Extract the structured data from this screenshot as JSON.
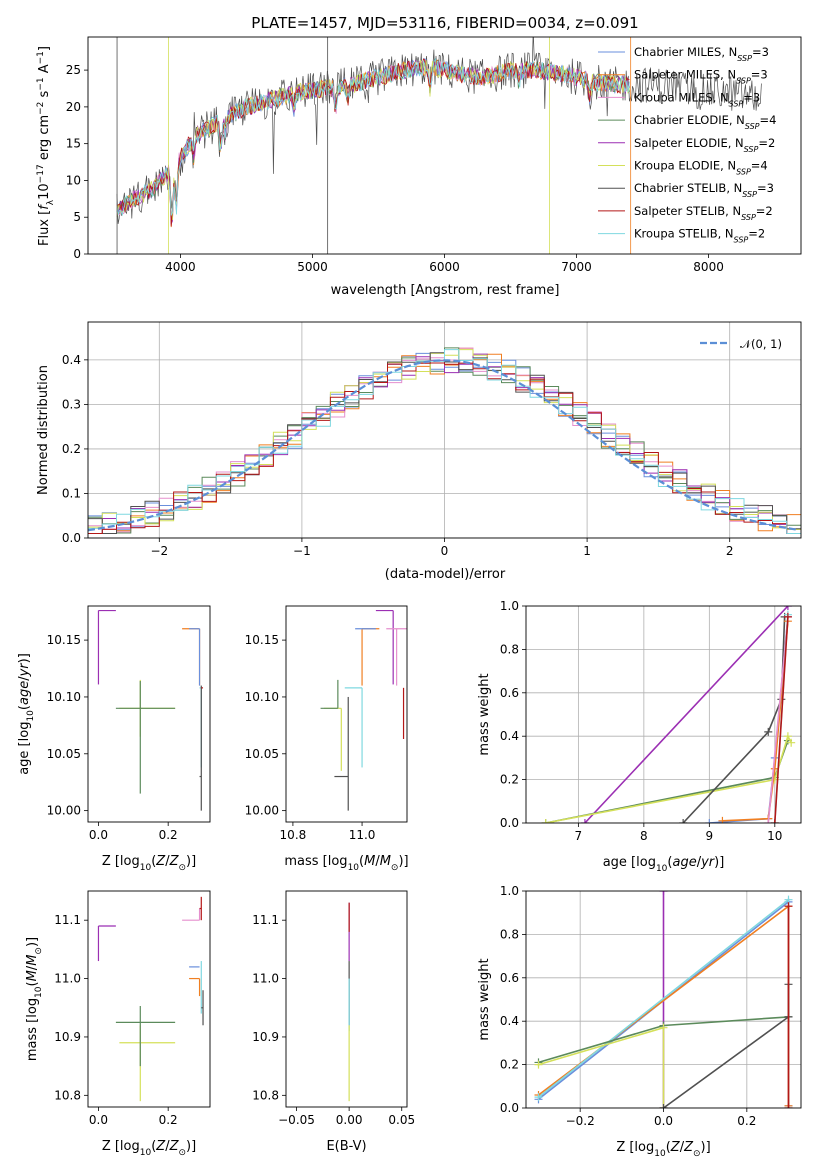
{
  "figure": {
    "title": "PLATE=1457, MJD=53116, FIBERID=0034, z=0.091"
  },
  "series_styles": [
    {
      "name": "Chabrier MILES, N_SSP=3",
      "color": "#6a8fdc"
    },
    {
      "name": "Salpeter MILES, N_SSP=3",
      "color": "#f07f22"
    },
    {
      "name": "Kroupa MILES, N_SSP=3",
      "color": "#e58fce"
    },
    {
      "name": "Chabrier ELODIE, N_SSP=4",
      "color": "#5b8a5b"
    },
    {
      "name": "Salpeter ELODIE, N_SSP=2",
      "color": "#9b2fb3"
    },
    {
      "name": "Kroupa ELODIE, N_SSP=4",
      "color": "#d4e05a"
    },
    {
      "name": "Chabrier STELIB, N_SSP=3",
      "color": "#505050"
    },
    {
      "name": "Salpeter STELIB, N_SSP=2",
      "color": "#b31717"
    },
    {
      "name": "Kroupa STELIB, N_SSP=2",
      "color": "#7fd8e0"
    }
  ],
  "chart_data": [
    {
      "id": "spectrum",
      "type": "line",
      "xlabel": "wavelength [Angstrom, rest frame]",
      "ylabel": "Flux [f_λ 10^-17 erg cm^-2 s^-1 A^-1]",
      "xlim": [
        3300,
        8700
      ],
      "ylim": [
        0,
        29.5
      ],
      "xticks": [
        4000,
        5000,
        6000,
        7000,
        8000
      ],
      "yticks": [
        0,
        5,
        10,
        15,
        20,
        25
      ],
      "grid": false,
      "legend_position": "right",
      "legend": [
        {
          "main": "Chabrier MILES, N",
          "sub": "SSP",
          "tail": "=3"
        },
        {
          "main": "Salpeter MILES, N",
          "sub": "SSP",
          "tail": "=3"
        },
        {
          "main": "Kroupa MILES, N",
          "sub": "SSP",
          "tail": "=3"
        },
        {
          "main": "Chabrier ELODIE, N",
          "sub": "SSP",
          "tail": "=4"
        },
        {
          "main": "Salpeter ELODIE, N",
          "sub": "SSP",
          "tail": "=2"
        },
        {
          "main": "Kroupa ELODIE, N",
          "sub": "SSP",
          "tail": "=4"
        },
        {
          "main": "Chabrier STELIB, N",
          "sub": "SSP",
          "tail": "=3"
        },
        {
          "main": "Salpeter STELIB, N",
          "sub": "SSP",
          "tail": "=2"
        },
        {
          "main": "Kroupa STELIB, N",
          "sub": "SSP",
          "tail": "=2"
        }
      ],
      "continuum": {
        "x": [
          3520,
          3600,
          3700,
          3800,
          3900,
          4000,
          4100,
          4200,
          4300,
          4400,
          4500,
          4700,
          4900,
          5100,
          5300,
          5500,
          5700,
          5900,
          6100,
          6300,
          6500,
          6700,
          6900,
          7100,
          7300,
          7500,
          7700,
          7900,
          8100,
          8300,
          8400
        ],
        "y": [
          6,
          7,
          8,
          9,
          11,
          13,
          16,
          17,
          18,
          19,
          20,
          21,
          22,
          22.5,
          23,
          24,
          25,
          25.5,
          24.5,
          24,
          25,
          25,
          24.5,
          23.5,
          23,
          23,
          23,
          22,
          22,
          21.5,
          21
        ]
      }
    },
    {
      "id": "residual-histogram",
      "type": "histogram",
      "xlabel": "(data-model)/error",
      "ylabel": "Normed distribution",
      "xlim": [
        -2.5,
        2.5
      ],
      "ylim": [
        0,
        0.485
      ],
      "xticks": [
        -2,
        -1,
        0,
        1,
        2
      ],
      "yticks": [
        0.0,
        0.1,
        0.2,
        0.3,
        0.4
      ],
      "grid": true,
      "bin_width": 0.1,
      "legend_position": "top-right",
      "normal_label": "𝒩(0, 1)",
      "normal_color": "#5b8fd6"
    },
    {
      "id": "age-vs-Z",
      "type": "errorbar",
      "xlabel": "Z [log10(Z/Z⊙)]",
      "ylabel": "age [log10(age/yr)]",
      "xlim": [
        -0.03,
        0.32
      ],
      "ylim": [
        9.99,
        10.18
      ],
      "xticks": [
        0.0,
        0.2
      ],
      "yticks": [
        10.0,
        10.05,
        10.1,
        10.15
      ],
      "points": [
        {
          "x": 0.0,
          "y": 10.176,
          "xerr": [
            0.0,
            0.05
          ],
          "yerr": [
            0.065,
            0.0
          ],
          "color": "#9b2fb3"
        },
        {
          "x": 0.12,
          "y": 10.09,
          "xerr": [
            0.06,
            0.1
          ],
          "yerr": [
            0.025,
            0.025
          ],
          "color": "#d4e05a"
        },
        {
          "x": 0.12,
          "y": 10.09,
          "xerr": [
            0.07,
            0.1
          ],
          "yerr": [
            0.075,
            0.024
          ],
          "color": "#5b8a5b"
        },
        {
          "x": 0.29,
          "y": 10.16,
          "xerr": [
            0.05,
            0.0
          ],
          "yerr": [
            0.05,
            0.0
          ],
          "color": "#f07f22"
        },
        {
          "x": 0.29,
          "y": 10.16,
          "xerr": [
            0.03,
            0.0
          ],
          "yerr": [
            0.05,
            0.0
          ],
          "color": "#6a8fdc"
        },
        {
          "x": 0.295,
          "y": 10.108,
          "xerr": [
            0.005,
            0.0
          ],
          "yerr": [
            0.07,
            0.0
          ],
          "color": "#7fd8e0"
        },
        {
          "x": 0.295,
          "y": 10.03,
          "xerr": [
            0.005,
            0.0
          ],
          "yerr": [
            0.03,
            0.08
          ],
          "color": "#505050"
        },
        {
          "x": 0.3,
          "y": 10.108,
          "xerr": [
            0.005,
            0.0
          ],
          "yerr": [
            0.0,
            0.0
          ],
          "color": "#b31717"
        }
      ]
    },
    {
      "id": "age-vs-mass",
      "type": "errorbar",
      "xlabel": "mass [log10(M/M⊙)]",
      "ylabel": "",
      "xlim": [
        10.78,
        11.13
      ],
      "ylim": [
        9.99,
        10.18
      ],
      "xticks": [
        10.8,
        11.0
      ],
      "yticks": [
        10.0,
        10.05,
        10.1,
        10.15
      ],
      "points": [
        {
          "x": 11.09,
          "y": 10.176,
          "xerr": [
            0.05,
            0.0
          ],
          "yerr": [
            0.065,
            0.0
          ],
          "color": "#9b2fb3"
        },
        {
          "x": 11.1,
          "y": 10.16,
          "xerr": [
            0.03,
            0.03
          ],
          "yerr": [
            0.05,
            0.0
          ],
          "color": "#e58fce"
        },
        {
          "x": 11.0,
          "y": 10.16,
          "xerr": [
            0.0,
            0.05
          ],
          "yerr": [
            0.05,
            0.0
          ],
          "color": "#f07f22"
        },
        {
          "x": 11.01,
          "y": 10.16,
          "xerr": [
            0.03,
            0.03
          ],
          "yerr": [
            0.0,
            0.0
          ],
          "color": "#6a8fdc"
        },
        {
          "x": 11.0,
          "y": 10.108,
          "xerr": [
            0.05,
            0.0
          ],
          "yerr": [
            0.07,
            0.0
          ],
          "color": "#7fd8e0"
        },
        {
          "x": 10.94,
          "y": 10.09,
          "xerr": [
            0.05,
            0.0
          ],
          "yerr": [
            0.055,
            0.0
          ],
          "color": "#d4e05a"
        },
        {
          "x": 10.93,
          "y": 10.09,
          "xerr": [
            0.05,
            0.0
          ],
          "yerr": [
            0.0,
            0.025
          ],
          "color": "#5b8a5b"
        },
        {
          "x": 10.96,
          "y": 10.03,
          "xerr": [
            0.04,
            0.0
          ],
          "yerr": [
            0.03,
            0.07
          ],
          "color": "#505050"
        },
        {
          "x": 11.12,
          "y": 10.108,
          "xerr": [
            0.0,
            0.0
          ],
          "yerr": [
            0.045,
            0.0
          ],
          "color": "#b31717"
        }
      ]
    },
    {
      "id": "mass-weight-vs-age",
      "type": "line",
      "xlabel": "age [log10(age/yr)]",
      "ylabel": "mass weight",
      "xlim": [
        6.2,
        10.4
      ],
      "ylim": [
        0,
        1.0
      ],
      "xticks": [
        7,
        8,
        9,
        10
      ],
      "yticks": [
        0.0,
        0.2,
        0.4,
        0.6,
        0.8,
        1.0
      ],
      "grid": true,
      "series": [
        {
          "name": "Salpeter ELODIE",
          "color": "#9b2fb3",
          "x": [
            7.1,
            10.2
          ],
          "y": [
            0.0,
            1.0
          ]
        },
        {
          "name": "Chabrier ELODIE",
          "color": "#5b8a5b",
          "x": [
            6.5,
            10.0,
            10.2
          ],
          "y": [
            0.0,
            0.21,
            0.38
          ]
        },
        {
          "name": "Kroupa ELODIE",
          "color": "#d4e05a",
          "x": [
            6.5,
            10.0,
            10.2,
            10.25
          ],
          "y": [
            0.0,
            0.2,
            0.4,
            0.37
          ]
        },
        {
          "name": "Chabrier STELIB",
          "color": "#505050",
          "x": [
            8.6,
            9.9,
            10.1,
            10.15
          ],
          "y": [
            0.0,
            0.42,
            0.57,
            0.95
          ]
        },
        {
          "name": "Chabrier MILES",
          "color": "#6a8fdc",
          "x": [
            9.0,
            9.9,
            10.0,
            10.2
          ],
          "y": [
            0.0,
            0.02,
            0.3,
            0.95
          ]
        },
        {
          "name": "Salpeter MILES",
          "color": "#f07f22",
          "x": [
            9.2,
            9.9,
            10.0,
            10.2
          ],
          "y": [
            0.01,
            0.02,
            0.25,
            0.93
          ]
        },
        {
          "name": "Kroupa MILES",
          "color": "#e58fce",
          "x": [
            9.9,
            10.2
          ],
          "y": [
            0.0,
            0.95
          ]
        },
        {
          "name": "Kroupa STELIB",
          "color": "#7fd8e0",
          "x": [
            10.0,
            10.2
          ],
          "y": [
            0.0,
            0.96
          ]
        },
        {
          "name": "Salpeter STELIB",
          "color": "#b31717",
          "x": [
            10.0,
            10.2
          ],
          "y": [
            0.0,
            0.95
          ]
        }
      ]
    },
    {
      "id": "mass-vs-Z",
      "type": "errorbar",
      "xlabel": "Z [log10(Z/Z⊙)]",
      "ylabel": "mass [log10(M/M⊙)]",
      "xlim": [
        -0.03,
        0.32
      ],
      "ylim": [
        10.78,
        11.15
      ],
      "xticks": [
        0.0,
        0.2
      ],
      "yticks": [
        10.8,
        10.9,
        11.0,
        11.1
      ],
      "points": [
        {
          "x": 0.0,
          "y": 11.09,
          "xerr": [
            0.0,
            0.05
          ],
          "yerr": [
            0.06,
            0.0
          ],
          "color": "#9b2fb3"
        },
        {
          "x": 0.12,
          "y": 10.89,
          "xerr": [
            0.06,
            0.1
          ],
          "yerr": [
            0.1,
            0.03
          ],
          "color": "#d4e05a"
        },
        {
          "x": 0.12,
          "y": 10.925,
          "xerr": [
            0.07,
            0.1
          ],
          "yerr": [
            0.075,
            0.028
          ],
          "color": "#5b8a5b"
        },
        {
          "x": 0.29,
          "y": 11.1,
          "xerr": [
            0.05,
            0.0
          ],
          "yerr": [
            0.0,
            0.02
          ],
          "color": "#e58fce"
        },
        {
          "x": 0.29,
          "y": 11.0,
          "xerr": [
            0.03,
            0.0
          ],
          "yerr": [
            0.03,
            0.0
          ],
          "color": "#f07f22"
        },
        {
          "x": 0.29,
          "y": 11.02,
          "xerr": [
            0.03,
            0.0
          ],
          "yerr": [
            0.0,
            0.0
          ],
          "color": "#6a8fdc"
        },
        {
          "x": 0.295,
          "y": 11.0,
          "xerr": [
            0.0,
            0.0
          ],
          "yerr": [
            0.06,
            0.03
          ],
          "color": "#7fd8e0"
        },
        {
          "x": 0.3,
          "y": 10.95,
          "xerr": [
            0.005,
            0.0
          ],
          "yerr": [
            0.03,
            0.03
          ],
          "color": "#505050"
        },
        {
          "x": 0.295,
          "y": 11.12,
          "xerr": [
            0.005,
            0.0
          ],
          "yerr": [
            0.02,
            0.02
          ],
          "color": "#b31717"
        }
      ]
    },
    {
      "id": "mass-vs-ebv",
      "type": "errorbar",
      "xlabel": "E(B-V)",
      "ylabel": "",
      "xlim": [
        -0.06,
        0.055
      ],
      "ylim": [
        10.78,
        11.15
      ],
      "xticks": [
        -0.05,
        0.0,
        0.05
      ],
      "yticks": [
        10.8,
        10.9,
        11.0,
        11.1
      ],
      "points": [
        {
          "x": 0.0,
          "y": 11.09,
          "xerr": [
            0.0,
            0.0
          ],
          "yerr": [
            0.06,
            0.04
          ],
          "color": "#9b2fb3"
        },
        {
          "x": 0.0,
          "y": 11.1,
          "xerr": [
            0.0,
            0.0
          ],
          "yerr": [
            0.02,
            0.03
          ],
          "color": "#b31717"
        },
        {
          "x": 0.0,
          "y": 10.95,
          "xerr": [
            0.0,
            0.0
          ],
          "yerr": [
            0.03,
            0.08
          ],
          "color": "#505050"
        },
        {
          "x": 0.0,
          "y": 10.95,
          "xerr": [
            0.0,
            0.0
          ],
          "yerr": [
            0.04,
            0.05
          ],
          "color": "#7fd8e0"
        },
        {
          "x": 0.0,
          "y": 10.89,
          "xerr": [
            0.0,
            0.0
          ],
          "yerr": [
            0.1,
            0.03
          ],
          "color": "#d4e05a"
        }
      ]
    },
    {
      "id": "mass-weight-vs-Z",
      "type": "line",
      "xlabel": "Z [log10(Z/Z⊙)]",
      "ylabel": "mass weight",
      "xlim": [
        -0.33,
        0.33
      ],
      "ylim": [
        0,
        1.0
      ],
      "xticks": [
        -0.2,
        0.0,
        0.2
      ],
      "yticks": [
        0.0,
        0.2,
        0.4,
        0.6,
        0.8,
        1.0
      ],
      "grid": true,
      "series": [
        {
          "name": "Salpeter ELODIE",
          "color": "#9b2fb3",
          "x": [
            0.0,
            0.0
          ],
          "y": [
            1.0,
            0.0
          ]
        },
        {
          "name": "Chabrier MILES",
          "color": "#6a8fdc",
          "x": [
            -0.3,
            0.3,
            0.3
          ],
          "y": [
            0.04,
            0.95,
            0.01
          ]
        },
        {
          "name": "Salpeter MILES",
          "color": "#f07f22",
          "x": [
            -0.3,
            0.3,
            0.3
          ],
          "y": [
            0.06,
            0.93,
            0.01
          ]
        },
        {
          "name": "Kroupa STELIB",
          "color": "#7fd8e0",
          "x": [
            -0.3,
            0.3
          ],
          "y": [
            0.05,
            0.96
          ]
        },
        {
          "name": "Chabrier ELODIE",
          "color": "#5b8a5b",
          "x": [
            -0.3,
            0.0,
            0.3
          ],
          "y": [
            0.21,
            0.38,
            0.42
          ]
        },
        {
          "name": "Kroupa ELODIE",
          "color": "#d4e05a",
          "x": [
            -0.3,
            0.0,
            0.0
          ],
          "y": [
            0.2,
            0.37,
            0.0
          ]
        },
        {
          "name": "Chabrier STELIB",
          "color": "#505050",
          "x": [
            0.0,
            0.3,
            0.3
          ],
          "y": [
            0.0,
            0.42,
            0.57
          ]
        },
        {
          "name": "Salpeter STELIB",
          "color": "#b31717",
          "x": [
            0.3,
            0.3
          ],
          "y": [
            0.0,
            0.93
          ]
        }
      ]
    }
  ]
}
